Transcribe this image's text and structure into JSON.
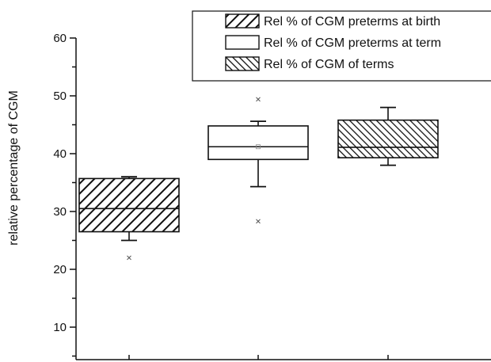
{
  "chart_data": {
    "type": "box",
    "title": "",
    "xlabel": "",
    "ylabel": "relative percentage of CGM",
    "ylim": [
      3,
      60
    ],
    "yticks_labeled": [
      10,
      20,
      30,
      40,
      50,
      60
    ],
    "grid": false,
    "legend_position": "top-right",
    "series": [
      {
        "name": "Rel % of CGM preterms at birth",
        "pattern": "backslash-hatch",
        "whisker_low": 25.0,
        "q1": 26.5,
        "median": 30.5,
        "q3": 35.7,
        "whisker_high": 36.0,
        "mean": null,
        "outliers": [
          22.0
        ]
      },
      {
        "name": "Rel % of CGM preterms at term",
        "pattern": "none",
        "whisker_low": 34.3,
        "q1": 39.0,
        "median": 41.2,
        "q3": 44.8,
        "whisker_high": 45.6,
        "mean": 41.2,
        "outliers": [
          28.3,
          49.4
        ]
      },
      {
        "name": "Rel % of CGM of terms",
        "pattern": "slash-hatch",
        "whisker_low": 38.0,
        "q1": 39.3,
        "median": 41.1,
        "q3": 45.8,
        "whisker_high": 48.0,
        "mean": null,
        "outliers": []
      }
    ]
  }
}
